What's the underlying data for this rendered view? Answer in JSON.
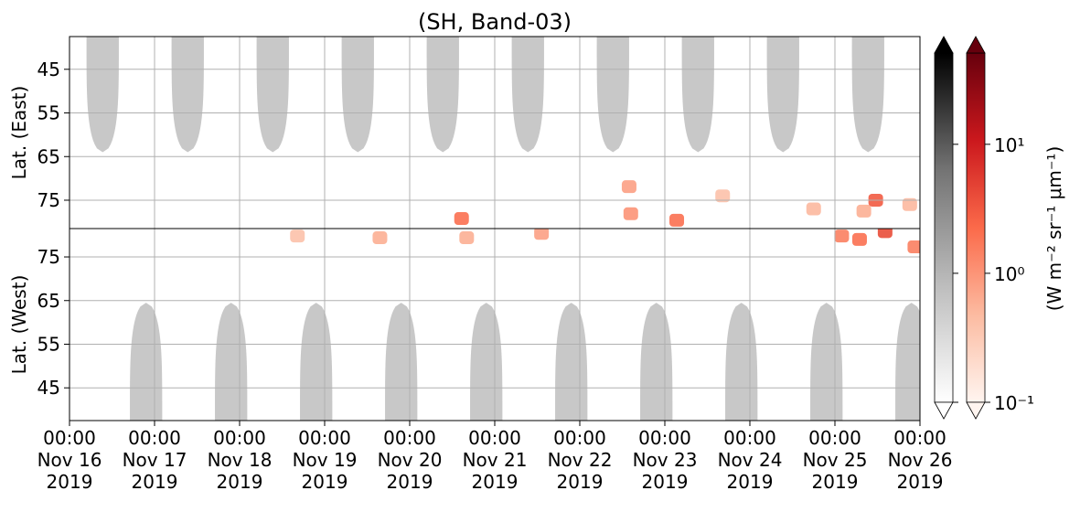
{
  "chart_data": {
    "type": "heatmap",
    "title": "(SH, Band-03)",
    "xlim": [
      0,
      10
    ],
    "xticks": [
      {
        "value": 0,
        "label": "00:00\nNov 16\n2019"
      },
      {
        "value": 1,
        "label": "00:00\nNov 17\n2019"
      },
      {
        "value": 2,
        "label": "00:00\nNov 18\n2019"
      },
      {
        "value": 3,
        "label": "00:00\nNov 19\n2019"
      },
      {
        "value": 4,
        "label": "00:00\nNov 20\n2019"
      },
      {
        "value": 5,
        "label": "00:00\nNov 21\n2019"
      },
      {
        "value": 6,
        "label": "00:00\nNov 22\n2019"
      },
      {
        "value": 7,
        "label": "00:00\nNov 23\n2019"
      },
      {
        "value": 8,
        "label": "00:00\nNov 24\n2019"
      },
      {
        "value": 9,
        "label": "00:00\nNov 25\n2019"
      },
      {
        "value": 10,
        "label": "00:00\nNov 26\n2019"
      }
    ],
    "grid": true,
    "mask_color": "#c8c8c8",
    "panels": [
      {
        "ylabel": "Lat. (East)",
        "ylim": [
          37.5,
          81.5
        ],
        "y_inverted": true,
        "yticks": [
          45,
          55,
          65,
          75
        ],
        "masks": [
          {
            "center": 0.39,
            "half_width": 0.19,
            "edge_lat": 64
          },
          {
            "center": 1.39,
            "half_width": 0.19,
            "edge_lat": 64
          },
          {
            "center": 2.39,
            "half_width": 0.19,
            "edge_lat": 64
          },
          {
            "center": 3.39,
            "half_width": 0.19,
            "edge_lat": 64
          },
          {
            "center": 4.39,
            "half_width": 0.19,
            "edge_lat": 64
          },
          {
            "center": 5.39,
            "half_width": 0.19,
            "edge_lat": 64
          },
          {
            "center": 6.39,
            "half_width": 0.19,
            "edge_lat": 64
          },
          {
            "center": 7.39,
            "half_width": 0.19,
            "edge_lat": 64
          },
          {
            "center": 8.39,
            "half_width": 0.19,
            "edge_lat": 64
          },
          {
            "center": 9.39,
            "half_width": 0.19,
            "edge_lat": 64
          }
        ],
        "patches": [
          {
            "x": 4.61,
            "lat": 79.2,
            "value": 2
          },
          {
            "x": 6.58,
            "lat": 71.9,
            "value": 0.8
          },
          {
            "x": 6.6,
            "lat": 78.1,
            "value": 1
          },
          {
            "x": 7.14,
            "lat": 79.6,
            "value": 2
          },
          {
            "x": 7.68,
            "lat": 74,
            "value": 0.4
          },
          {
            "x": 8.75,
            "lat": 77,
            "value": 0.5
          },
          {
            "x": 9.34,
            "lat": 77.5,
            "value": 0.6
          },
          {
            "x": 9.48,
            "lat": 75,
            "value": 3
          },
          {
            "x": 9.88,
            "lat": 76,
            "value": 0.5
          }
        ]
      },
      {
        "ylabel": "Lat. (West)",
        "ylim": [
          37.5,
          81.5
        ],
        "y_inverted": false,
        "yticks": [
          45,
          55,
          65,
          75
        ],
        "masks": [
          {
            "center": 0.9,
            "half_width": 0.19,
            "edge_lat": 64.5
          },
          {
            "center": 1.9,
            "half_width": 0.19,
            "edge_lat": 64.5
          },
          {
            "center": 2.9,
            "half_width": 0.19,
            "edge_lat": 64.5
          },
          {
            "center": 3.9,
            "half_width": 0.19,
            "edge_lat": 64.5
          },
          {
            "center": 4.9,
            "half_width": 0.19,
            "edge_lat": 64.5
          },
          {
            "center": 5.9,
            "half_width": 0.19,
            "edge_lat": 64.5
          },
          {
            "center": 6.9,
            "half_width": 0.19,
            "edge_lat": 64.5
          },
          {
            "center": 7.9,
            "half_width": 0.19,
            "edge_lat": 64.5
          },
          {
            "center": 8.9,
            "half_width": 0.19,
            "edge_lat": 64.5
          },
          {
            "center": 9.9,
            "half_width": 0.19,
            "edge_lat": 64.5
          }
        ],
        "patches": [
          {
            "x": 2.68,
            "lat": 79.8,
            "value": 0.4
          },
          {
            "x": 3.65,
            "lat": 79.4,
            "value": 0.6
          },
          {
            "x": 4.67,
            "lat": 79.4,
            "value": 0.6
          },
          {
            "x": 5.55,
            "lat": 80.4,
            "value": 0.8
          },
          {
            "x": 9.08,
            "lat": 79.8,
            "value": 1.5
          },
          {
            "x": 9.29,
            "lat": 79,
            "value": 2
          },
          {
            "x": 9.59,
            "lat": 80.8,
            "value": 4
          },
          {
            "x": 9.94,
            "lat": 77.3,
            "value": 1.5
          }
        ]
      }
    ],
    "colorbar": {
      "clim": [
        0.1,
        51
      ],
      "log": true,
      "cmaps": [
        [
          "#ffffff",
          "#bdbdbd",
          "#737373",
          "#000000"
        ],
        [
          "#fff5f0",
          "#fcbba1",
          "#fb6a4a",
          "#cb181d",
          "#67000d"
        ]
      ],
      "ticks": [
        {
          "value": 0.1,
          "label": "10⁻¹"
        },
        {
          "value": 1,
          "label": "10⁰"
        },
        {
          "value": 10,
          "label": "10¹"
        }
      ],
      "label": "(W m⁻² sr⁻¹ μm⁻¹)"
    }
  }
}
